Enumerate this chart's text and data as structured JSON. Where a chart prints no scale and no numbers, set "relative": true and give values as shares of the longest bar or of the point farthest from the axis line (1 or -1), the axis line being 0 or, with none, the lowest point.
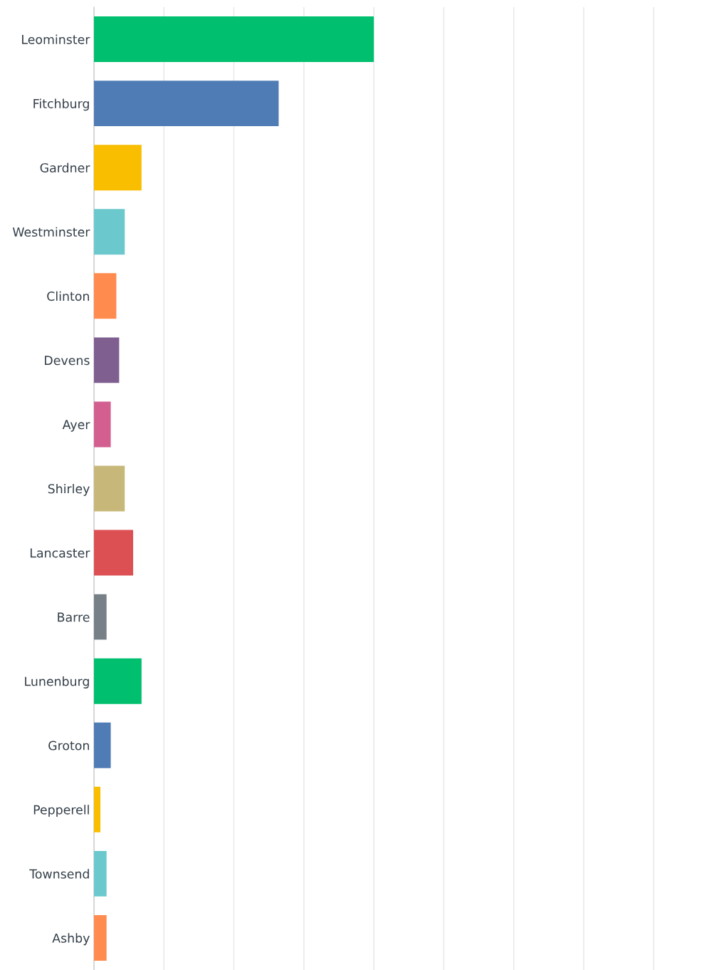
{
  "chart_data": {
    "type": "bar",
    "orientation": "horizontal",
    "relative": true,
    "grid": "x",
    "legend": false,
    "categories": [
      "Leominster",
      "Fitchburg",
      "Gardner",
      "Westminster",
      "Clinton",
      "Devens",
      "Ayer",
      "Shirley",
      "Lancaster",
      "Barre",
      "Lunenburg",
      "Groton",
      "Pepperell",
      "Townsend",
      "Ashby"
    ],
    "values": [
      1,
      0.66,
      0.17,
      0.11,
      0.08,
      0.09,
      0.06,
      0.11,
      0.14,
      0.045,
      0.17,
      0.06,
      0.023,
      0.045,
      0.045
    ],
    "colors": [
      "#00bf6f",
      "#507cb6",
      "#f9be00",
      "#6bc8cd",
      "#ff8b4f",
      "#7f5e90",
      "#d25f90",
      "#c7b879",
      "#dc5054",
      "#768086",
      "#00bf6f",
      "#507cb6",
      "#f9be00",
      "#6bc8cd",
      "#ff8b4f"
    ]
  }
}
